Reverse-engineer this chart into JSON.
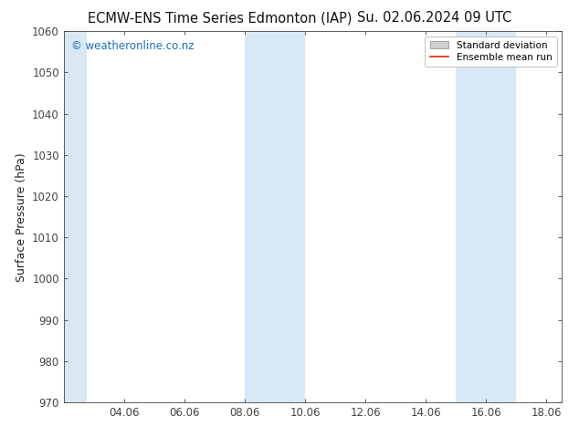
{
  "title_left": "ECMW-ENS Time Series Edmonton (IAP)",
  "title_right": "Su. 02.06.2024 09 UTC",
  "ylabel": "Surface Pressure (hPa)",
  "ylim": [
    970,
    1060
  ],
  "yticks": [
    970,
    980,
    990,
    1000,
    1010,
    1020,
    1030,
    1040,
    1050,
    1060
  ],
  "xlabel_ticks": [
    "04.06",
    "06.06",
    "08.06",
    "10.06",
    "12.06",
    "14.06",
    "16.06",
    "18.06"
  ],
  "xlabel_tick_positions": [
    4,
    6,
    8,
    10,
    12,
    14,
    16,
    18
  ],
  "xlim_start": 2.0,
  "xlim_end": 18.5,
  "shaded_bands": [
    {
      "x_start": 2.0,
      "x_end": 2.75
    },
    {
      "x_start": 8.0,
      "x_end": 9.0
    },
    {
      "x_start": 9.0,
      "x_end": 10.0
    },
    {
      "x_start": 15.0,
      "x_end": 16.0
    },
    {
      "x_start": 16.0,
      "x_end": 17.0
    }
  ],
  "shade_color": "#d9e8f5",
  "background_color": "#ffffff",
  "watermark_text": "© weatheronline.co.nz",
  "watermark_color": "#1a6fbd",
  "legend_std_label": "Standard deviation",
  "legend_mean_label": "Ensemble mean run",
  "legend_std_color": "#d0d0d0",
  "legend_mean_color": "#dd2200",
  "spine_color": "#444444",
  "tick_color": "#444444",
  "title_fontsize": 10.5,
  "axis_label_fontsize": 9,
  "tick_fontsize": 8.5
}
